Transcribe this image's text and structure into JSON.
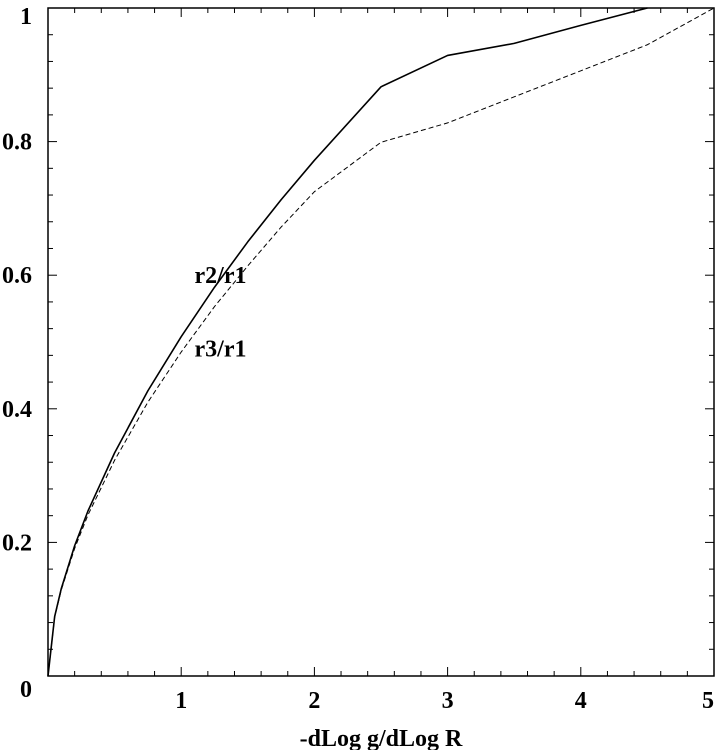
{
  "chart_data": {
    "type": "line",
    "title": "",
    "xlabel": "-dLog g/dLog R",
    "ylabel": "",
    "xlim": [
      0,
      5
    ],
    "ylim": [
      0,
      1
    ],
    "xticks": [
      1,
      2,
      3,
      4,
      5
    ],
    "yticks": [
      0,
      0.2,
      0.4,
      0.6,
      0.8,
      1
    ],
    "xtick_labels": [
      "1",
      "2",
      "3",
      "4",
      "5"
    ],
    "ytick_labels": [
      "0",
      "0.2",
      "0.4",
      "0.6",
      "0.8",
      "1"
    ],
    "grid": false,
    "legend": "none",
    "series": [
      {
        "name": "r2/r1",
        "style": "solid",
        "color": "#000000",
        "x": [
          0,
          0.05,
          0.1,
          0.2,
          0.3,
          0.5,
          0.75,
          1.0,
          1.25,
          1.5,
          1.75,
          2.0,
          2.5,
          3.0,
          3.5,
          4.0,
          4.5
        ],
        "y": [
          0,
          0.089,
          0.131,
          0.195,
          0.247,
          0.334,
          0.427,
          0.508,
          0.582,
          0.65,
          0.713,
          0.772,
          0.882,
          0.929,
          0.947,
          0.974,
          1.0
        ]
      },
      {
        "name": "r3/r1",
        "style": "dashed",
        "color": "#000000",
        "x": [
          0,
          0.05,
          0.1,
          0.2,
          0.3,
          0.5,
          0.75,
          1.0,
          1.25,
          1.5,
          1.75,
          2.0,
          2.5,
          3.0,
          3.5,
          4.0,
          4.5,
          5.0
        ],
        "y": [
          0,
          0.088,
          0.129,
          0.191,
          0.241,
          0.323,
          0.41,
          0.485,
          0.553,
          0.614,
          0.672,
          0.725,
          0.799,
          0.828,
          0.867,
          0.906,
          0.945,
          1.0
        ]
      }
    ],
    "annotations": [
      {
        "text": "r2/r1",
        "x": 1.1,
        "y": 0.6
      },
      {
        "text": "r3/r1",
        "x": 1.1,
        "y": 0.49
      }
    ]
  }
}
